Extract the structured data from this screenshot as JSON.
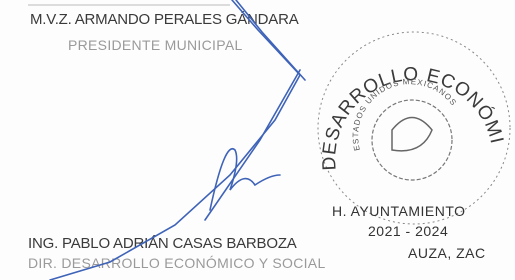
{
  "signatures": [
    {
      "name": "M.V.Z. ARMANDO PERALES GÁNDARA",
      "role": "PRESIDENTE MUNICIPAL"
    },
    {
      "name": "ING. PABLO ADRIÁN CASAS BARBOZA",
      "role": "DIR. DESARROLLO ECONÓMICO Y SOCIAL"
    }
  ],
  "stamp": {
    "department": "DESARROLLO ECONÓMICO",
    "country": "ESTADOS UNIDOS MEXICANOS",
    "council": "H. AYUNTAMIENTO",
    "term": "2021 - 2024",
    "place": "AUZA, ZAC"
  }
}
